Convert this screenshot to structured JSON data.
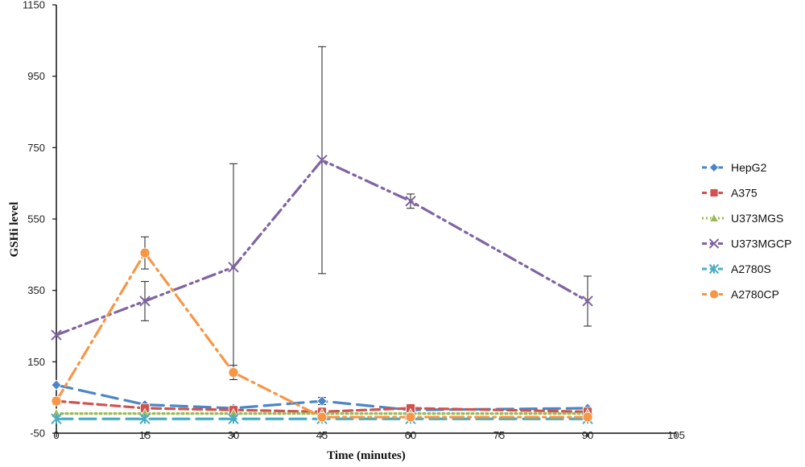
{
  "chart_data": {
    "type": "line",
    "title": "",
    "xlabel": "Time (minutes)",
    "ylabel": "GSHi level",
    "xlim": [
      0,
      105
    ],
    "ylim": [
      -50,
      1150
    ],
    "xticks": [
      0,
      15,
      30,
      45,
      60,
      75,
      90,
      105
    ],
    "yticks": [
      -50,
      150,
      350,
      550,
      750,
      950,
      1150
    ],
    "grid": false,
    "legend_position": "right",
    "series": [
      {
        "name": "HepG2",
        "color": "#4a86c5",
        "marker": "diamond",
        "dash": "long-dash",
        "points": [
          [
            0,
            85
          ],
          [
            15,
            30
          ],
          [
            30,
            20
          ],
          [
            45,
            40
          ],
          [
            60,
            15
          ],
          [
            90,
            20
          ]
        ],
        "errors": [
          0,
          0,
          0,
          10,
          0,
          0
        ]
      },
      {
        "name": "A375",
        "color": "#d1524f",
        "marker": "square",
        "dash": "dash",
        "points": [
          [
            0,
            40
          ],
          [
            15,
            20
          ],
          [
            30,
            15
          ],
          [
            45,
            10
          ],
          [
            60,
            20
          ],
          [
            90,
            10
          ]
        ],
        "errors": [
          0,
          0,
          0,
          0,
          0,
          0
        ]
      },
      {
        "name": "U373MGS",
        "color": "#9bbb59",
        "marker": "triangle",
        "dash": "dot",
        "points": [
          [
            0,
            5
          ],
          [
            15,
            5
          ],
          [
            30,
            5
          ],
          [
            45,
            5
          ],
          [
            60,
            5
          ],
          [
            90,
            5
          ]
        ],
        "errors": [
          0,
          0,
          0,
          0,
          0,
          0
        ]
      },
      {
        "name": "U373MGCP",
        "color": "#8064a2",
        "marker": "x",
        "dash": "dash-dot-dot",
        "points": [
          [
            0,
            225
          ],
          [
            15,
            320
          ],
          [
            30,
            415
          ],
          [
            45,
            715
          ],
          [
            60,
            600
          ],
          [
            90,
            320
          ]
        ],
        "errors": [
          0,
          55,
          290,
          318,
          20,
          70
        ]
      },
      {
        "name": "A2780S",
        "color": "#4bacc6",
        "marker": "star",
        "dash": "long-dash",
        "points": [
          [
            0,
            -10
          ],
          [
            15,
            -10
          ],
          [
            30,
            -10
          ],
          [
            45,
            -10
          ],
          [
            60,
            -10
          ],
          [
            90,
            -10
          ]
        ],
        "errors": [
          0,
          0,
          0,
          0,
          0,
          0
        ]
      },
      {
        "name": "A2780CP",
        "color": "#f79646",
        "marker": "circle",
        "dash": "dash-dot",
        "points": [
          [
            0,
            40
          ],
          [
            15,
            455
          ],
          [
            30,
            120
          ],
          [
            45,
            -5
          ],
          [
            60,
            -5
          ],
          [
            90,
            -5
          ]
        ],
        "errors": [
          0,
          45,
          20,
          0,
          0,
          0
        ]
      }
    ]
  }
}
